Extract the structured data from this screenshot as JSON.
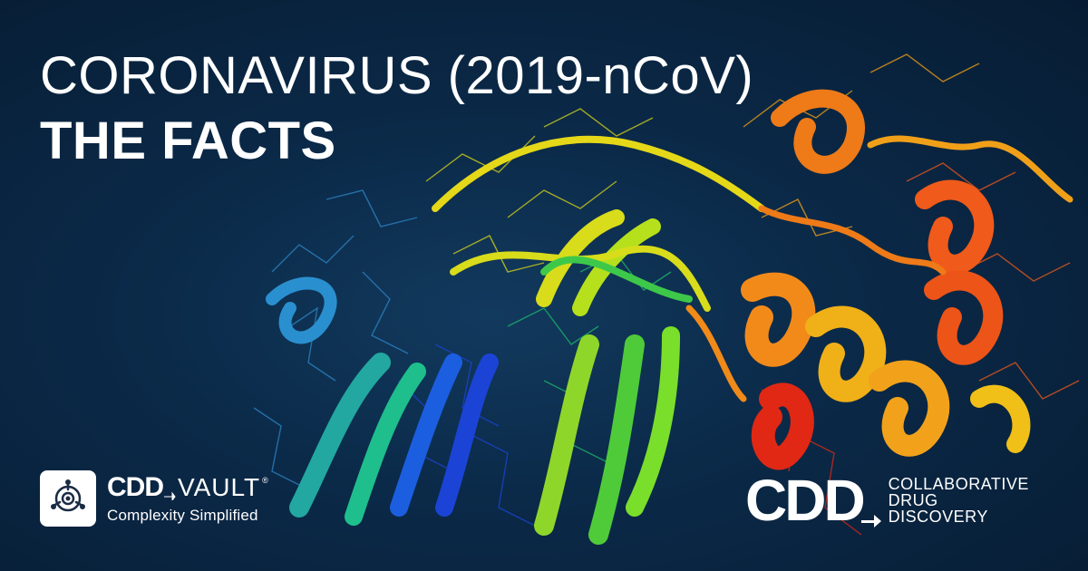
{
  "title": {
    "line1": "CORONAVIRUS (2019-nCoV)",
    "line2": "THE FACTS"
  },
  "vault_logo": {
    "brand": "CDD",
    "product": "VAULT",
    "registered": "®",
    "tagline": "Complexity Simplified",
    "icon": "aperture-icon"
  },
  "cdd_logo": {
    "brand": "CDD",
    "name_lines": [
      "COLLABORATIVE",
      "DRUG",
      "DISCOVERY"
    ],
    "icon": "arrow-icon"
  },
  "colors": {
    "background": "#0b2a49",
    "text": "#ffffff"
  }
}
